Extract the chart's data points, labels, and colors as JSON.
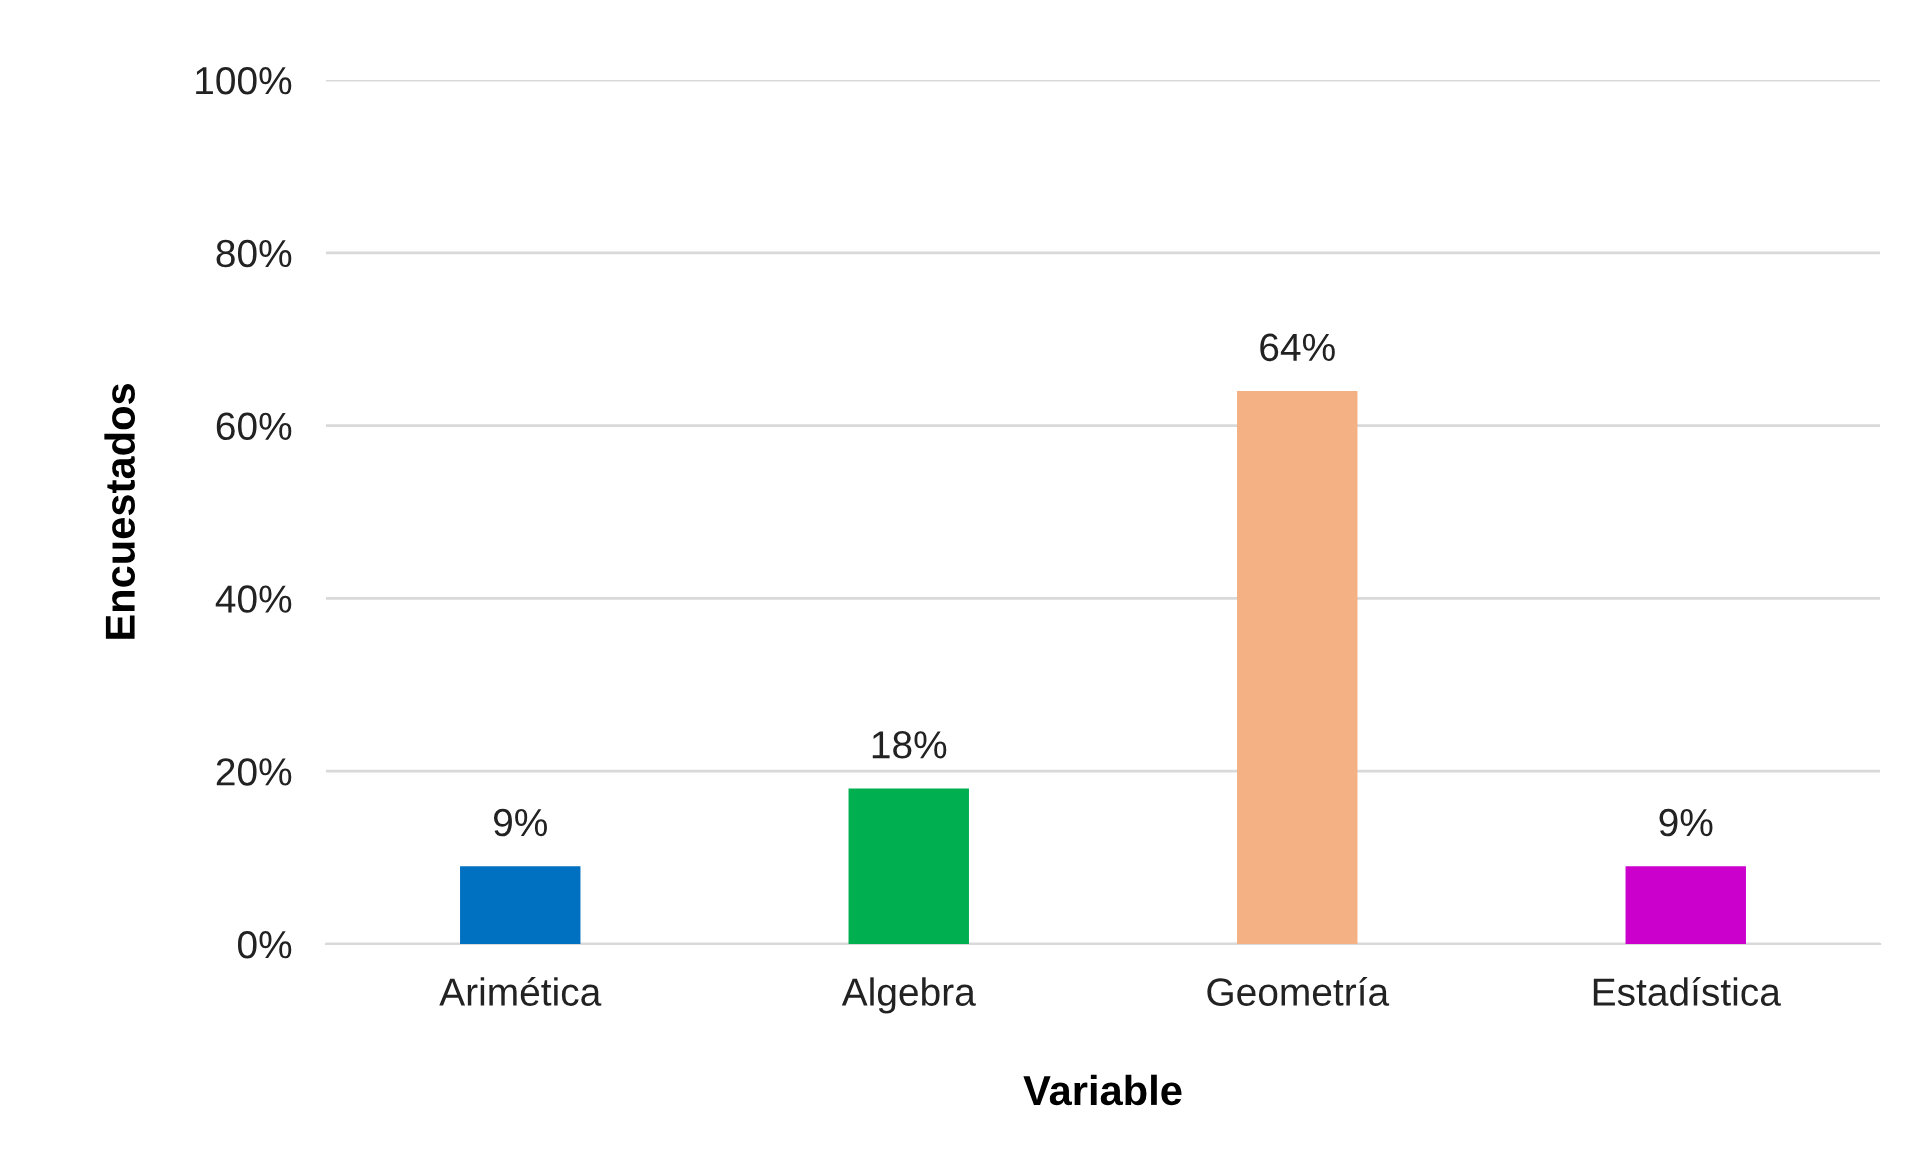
{
  "chart_data": {
    "type": "bar",
    "xlabel": "Variable",
    "ylabel": "Encuestados",
    "categories": [
      "Arimética",
      "Algebra",
      "Geometría",
      "Estadística"
    ],
    "values": [
      9,
      18,
      64,
      9
    ],
    "colors": [
      "#0070c0",
      "#00b050",
      "#f4b183",
      "#cc00cc"
    ],
    "value_labels": [
      "9%",
      "18%",
      "64%",
      "9%"
    ],
    "ylim": [
      0,
      100
    ],
    "yticks": [
      {
        "value": 0,
        "label": "0%"
      },
      {
        "value": 20,
        "label": "20%"
      },
      {
        "value": 40,
        "label": "40%"
      },
      {
        "value": 60,
        "label": "60%"
      },
      {
        "value": 80,
        "label": "80%"
      },
      {
        "value": 100,
        "label": "100%"
      }
    ],
    "grid": "y"
  }
}
